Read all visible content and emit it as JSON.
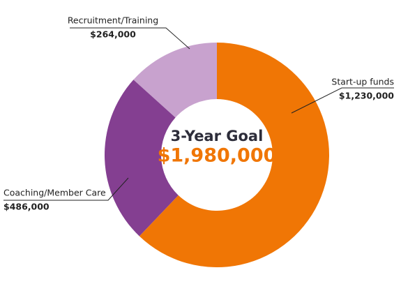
{
  "chart_data": {
    "type": "donut",
    "center_title": "3-Year Goal",
    "center_value": "$1,980,000",
    "categories": [
      "Start-up funds",
      "Coaching/Member Care",
      "Recruitment/Training"
    ],
    "values": [
      1230000,
      486000,
      264000
    ],
    "value_labels": [
      "$1,230,000",
      "$486,000",
      "$264,000"
    ],
    "colors": [
      "#f07605",
      "#843f91",
      "#c8a2ce"
    ]
  }
}
